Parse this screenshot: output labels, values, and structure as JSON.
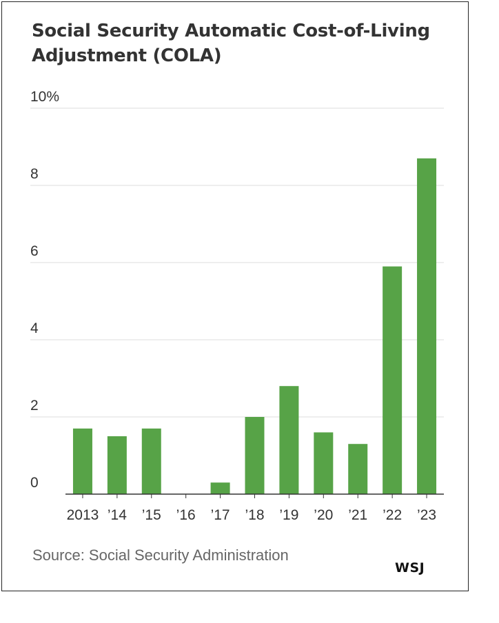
{
  "chart_data": {
    "type": "bar",
    "title": "Social Security Automatic Cost-of-Living Adjustment (COLA)",
    "categories": [
      "2013",
      "’14",
      "’15",
      "’16",
      "’17",
      "’18",
      "’19",
      "’20",
      "’21",
      "’22",
      "’23"
    ],
    "values": [
      1.7,
      1.5,
      1.7,
      0.0,
      0.3,
      2.0,
      2.8,
      1.6,
      1.3,
      5.9,
      8.7
    ],
    "yticks": [
      "0",
      "2",
      "4",
      "6",
      "8",
      "10%"
    ],
    "ylim": [
      0,
      10
    ],
    "grid": true,
    "bar_color": "#57a347",
    "source": "Source: Social Security Administration",
    "logo": "WSJ"
  }
}
